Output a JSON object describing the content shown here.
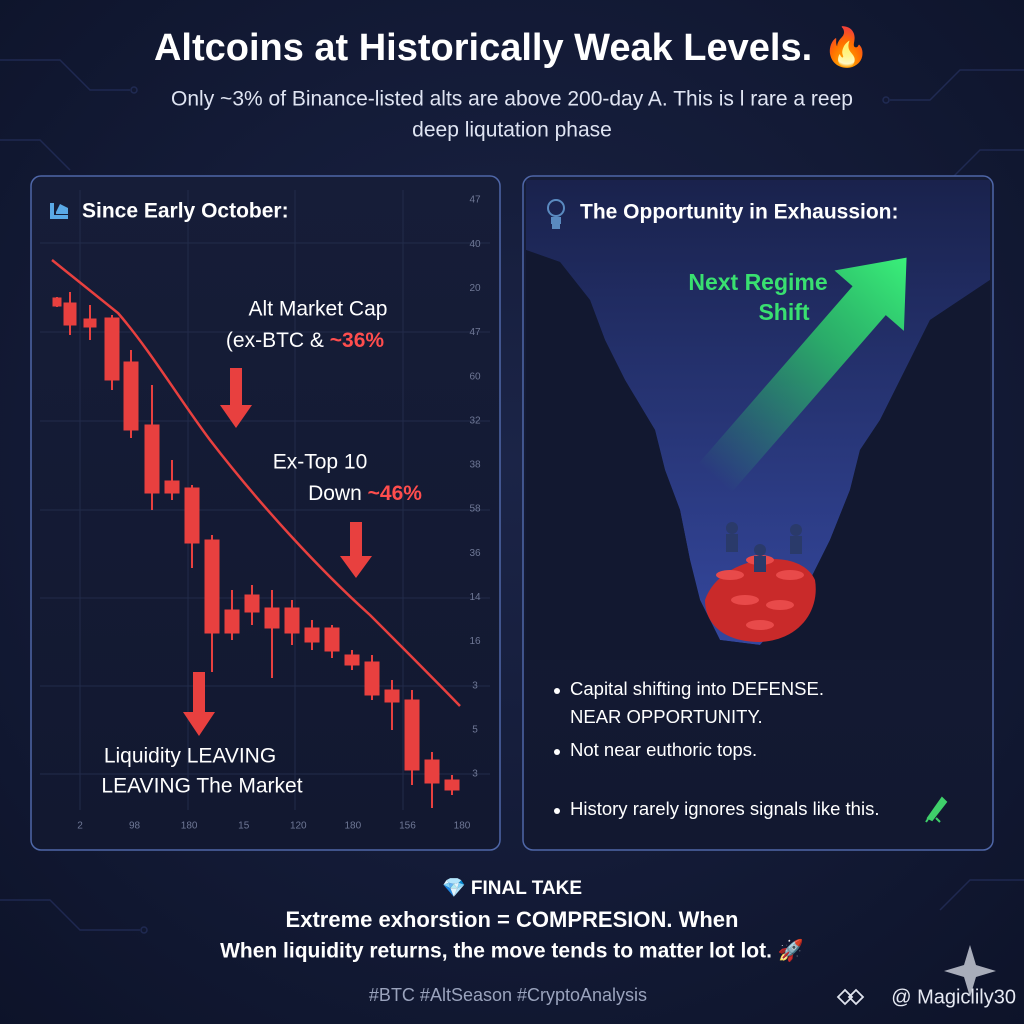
{
  "header": {
    "title": "Altcoins at Historically Weak Levels. 🔥",
    "subtitle_lines": [
      "Only ~3% of Binance-listed alts are above 200-day A. This is l rare a reep",
      "deep liqutation phase"
    ]
  },
  "left_panel": {
    "title": "Since Early October:",
    "y_axis_labels": [
      "47",
      "40",
      "20",
      "47",
      "60",
      "32",
      "38",
      "58",
      "36",
      "14",
      "16",
      "3",
      "5",
      "3"
    ],
    "x_axis_labels": [
      "2",
      "98",
      "180",
      "15",
      "120",
      "180",
      "156",
      "180"
    ],
    "annotations": {
      "alt_market_cap": {
        "line1": "Alt Market Cap",
        "line2": "(ex-BTC &",
        "highlight": "~36%"
      },
      "ex_top_10": {
        "line1": "Ex-Top 10",
        "line2": "Down",
        "highlight": "~46%"
      },
      "liquidity": [
        "Liquidity LEAVING",
        "LEAVING The Market"
      ]
    }
  },
  "right_panel": {
    "title": "The Opportunity in Exhaussion:",
    "callout": [
      "Next Regime",
      "Shift"
    ],
    "bullets": [
      [
        "Capital shifting into DEFENSE.",
        "NEAR OPPORTUNITY."
      ],
      [
        "Not near euthoric tops."
      ],
      [
        "History rarely ignores signals like this."
      ]
    ]
  },
  "final": {
    "heading": "💎 FINAL TAKE",
    "lines": [
      "Extreme exhorstion = COMPRESION. When",
      "When liquidity returns, the move tends to matter lot lot. 🚀"
    ],
    "hashtags": "#BTC #AltSeason #CryptoAnalysis",
    "handle": "@ Magiclily30"
  }
}
